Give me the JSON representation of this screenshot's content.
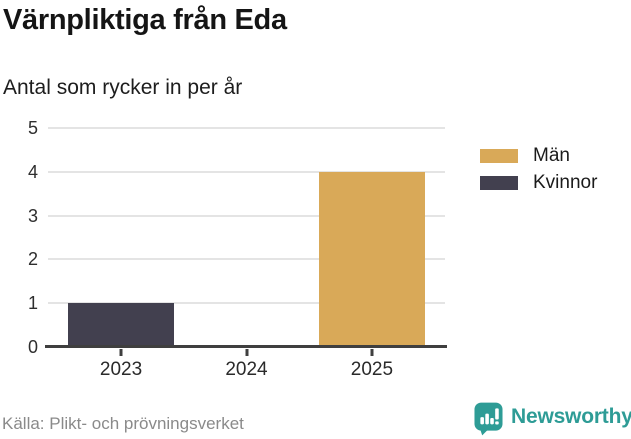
{
  "header": {
    "title": "Värnpliktiga från Eda",
    "subtitle": "Antal som rycker in per år"
  },
  "chart_data": {
    "type": "bar",
    "categories": [
      "2023",
      "2024",
      "2025"
    ],
    "series": [
      {
        "name": "Män",
        "values": [
          0,
          0,
          4
        ],
        "color": "#D9A958"
      },
      {
        "name": "Kvinnor",
        "values": [
          1,
          0,
          0
        ],
        "color": "#42404F"
      }
    ],
    "title": "Värnpliktiga från Eda",
    "subtitle": "Antal som rycker in per år",
    "xlabel": "",
    "ylabel": "",
    "ylim": [
      0,
      5
    ],
    "yticks": [
      0,
      1,
      2,
      3,
      4,
      5
    ],
    "grid": true,
    "legend_position": "right"
  },
  "footer": {
    "source": "Källa: Plikt- och prövningsverket",
    "brand": "Newsworthy"
  },
  "colors": {
    "men": "#D9A958",
    "women": "#42404F",
    "brand_teal": "#2E9C96",
    "axis": "#3F3F3F",
    "grid": "#E4E4E4"
  }
}
